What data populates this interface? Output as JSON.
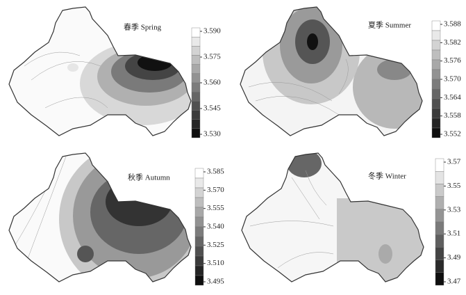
{
  "panels": [
    {
      "title": "春季 Spring",
      "ticks": [
        "3.590",
        "3.575",
        "3.560",
        "3.545",
        "3.530"
      ]
    },
    {
      "title": "夏季 Summer",
      "ticks": [
        "3.588",
        "3.582",
        "3.576",
        "3.570",
        "3.564",
        "3.558",
        "3.552"
      ]
    },
    {
      "title": "秋季 Autumn",
      "ticks": [
        "3.585",
        "3.570",
        "3.555",
        "3.540",
        "3.525",
        "3.510",
        "3.495"
      ]
    },
    {
      "title": "冬季 Winter",
      "ticks": [
        "3.57",
        "3.55",
        "3.53",
        "3.51",
        "3.49",
        "3.47"
      ]
    }
  ]
}
